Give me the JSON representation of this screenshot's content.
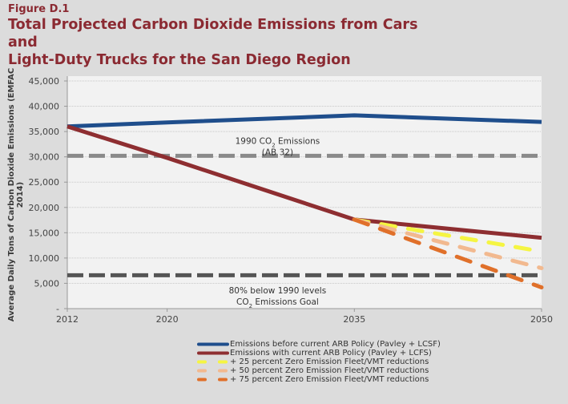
{
  "figure_label": "Figure D.1",
  "title_line1": "Total Projected Carbon Dioxide Emissions from Cars and",
  "title_line2": "Light-Duty Trucks for the San Diego Region",
  "chart_data": {
    "type": "line",
    "title": "Total Projected Carbon Dioxide Emissions from Cars and Light-Duty Trucks for the San Diego Region",
    "xlabel": "",
    "ylabel": "Average Daily Tons of Carbon Dioxide Emissions (EMFAC 2014)",
    "x": [
      2012,
      2020,
      2035,
      2050
    ],
    "xlim": [
      2012,
      2050
    ],
    "ylim": [
      0,
      45000
    ],
    "xticks": [
      "2012",
      "2020",
      "2035",
      "2050"
    ],
    "yticks": [
      "-",
      "5,000",
      "10,000",
      "15,000",
      "20,000",
      "25,000",
      "30,000",
      "35,000",
      "40,000",
      "45,000"
    ],
    "ytick_values": [
      0,
      5000,
      10000,
      15000,
      20000,
      25000,
      30000,
      35000,
      40000,
      45000
    ],
    "grid": true,
    "legend_position": "bottom",
    "series": [
      {
        "name": "Emissions before current ARB Policy (Pavley + LCSF)",
        "color": "#1f4e8c",
        "style": "solid",
        "x": [
          2012,
          2020,
          2035,
          2050
        ],
        "values": [
          36000,
          36800,
          38200,
          36900
        ]
      },
      {
        "name": "Emissions with current ARB Policy (Pavley + LCFS)",
        "color": "#8e2e31",
        "style": "solid",
        "x": [
          2012,
          2020,
          2035,
          2050
        ],
        "values": [
          36000,
          29800,
          17600,
          14000
        ]
      },
      {
        "name": "+ 25 percent Zero Emission Fleet/VMT reductions",
        "color": "#f5f542",
        "style": "dashed",
        "x": [
          2035,
          2050
        ],
        "values": [
          17600,
          11300
        ]
      },
      {
        "name": "+ 50 percent Zero Emission Fleet/VMT reductions",
        "color": "#f2b98f",
        "style": "dashed",
        "x": [
          2035,
          2050
        ],
        "values": [
          17600,
          8000
        ]
      },
      {
        "name": "+ 75 percent Zero Emission Fleet/VMT reductions",
        "color": "#e0702a",
        "style": "dashed",
        "x": [
          2035,
          2050
        ],
        "values": [
          17600,
          4200
        ]
      }
    ],
    "reference_lines": [
      {
        "name": "1990 CO2 Emissions (AB 32)",
        "value": 30200,
        "color": "#8a8a8a"
      },
      {
        "name": "80% below 1990 levels CO2 Emissions Goal",
        "value": 6600,
        "color": "#555555"
      }
    ],
    "annotations": [
      {
        "line1": "1990 CO",
        "sub": "2",
        "line1_rest": " Emissions",
        "line2": "(AB 32)",
        "x": 2030,
        "y": 33000
      },
      {
        "line1": "80% below 1990 levels",
        "line2_pre": "CO",
        "sub": "2",
        "line2_rest": " Emissions Goal",
        "x": 2030,
        "y": 3500
      }
    ]
  }
}
